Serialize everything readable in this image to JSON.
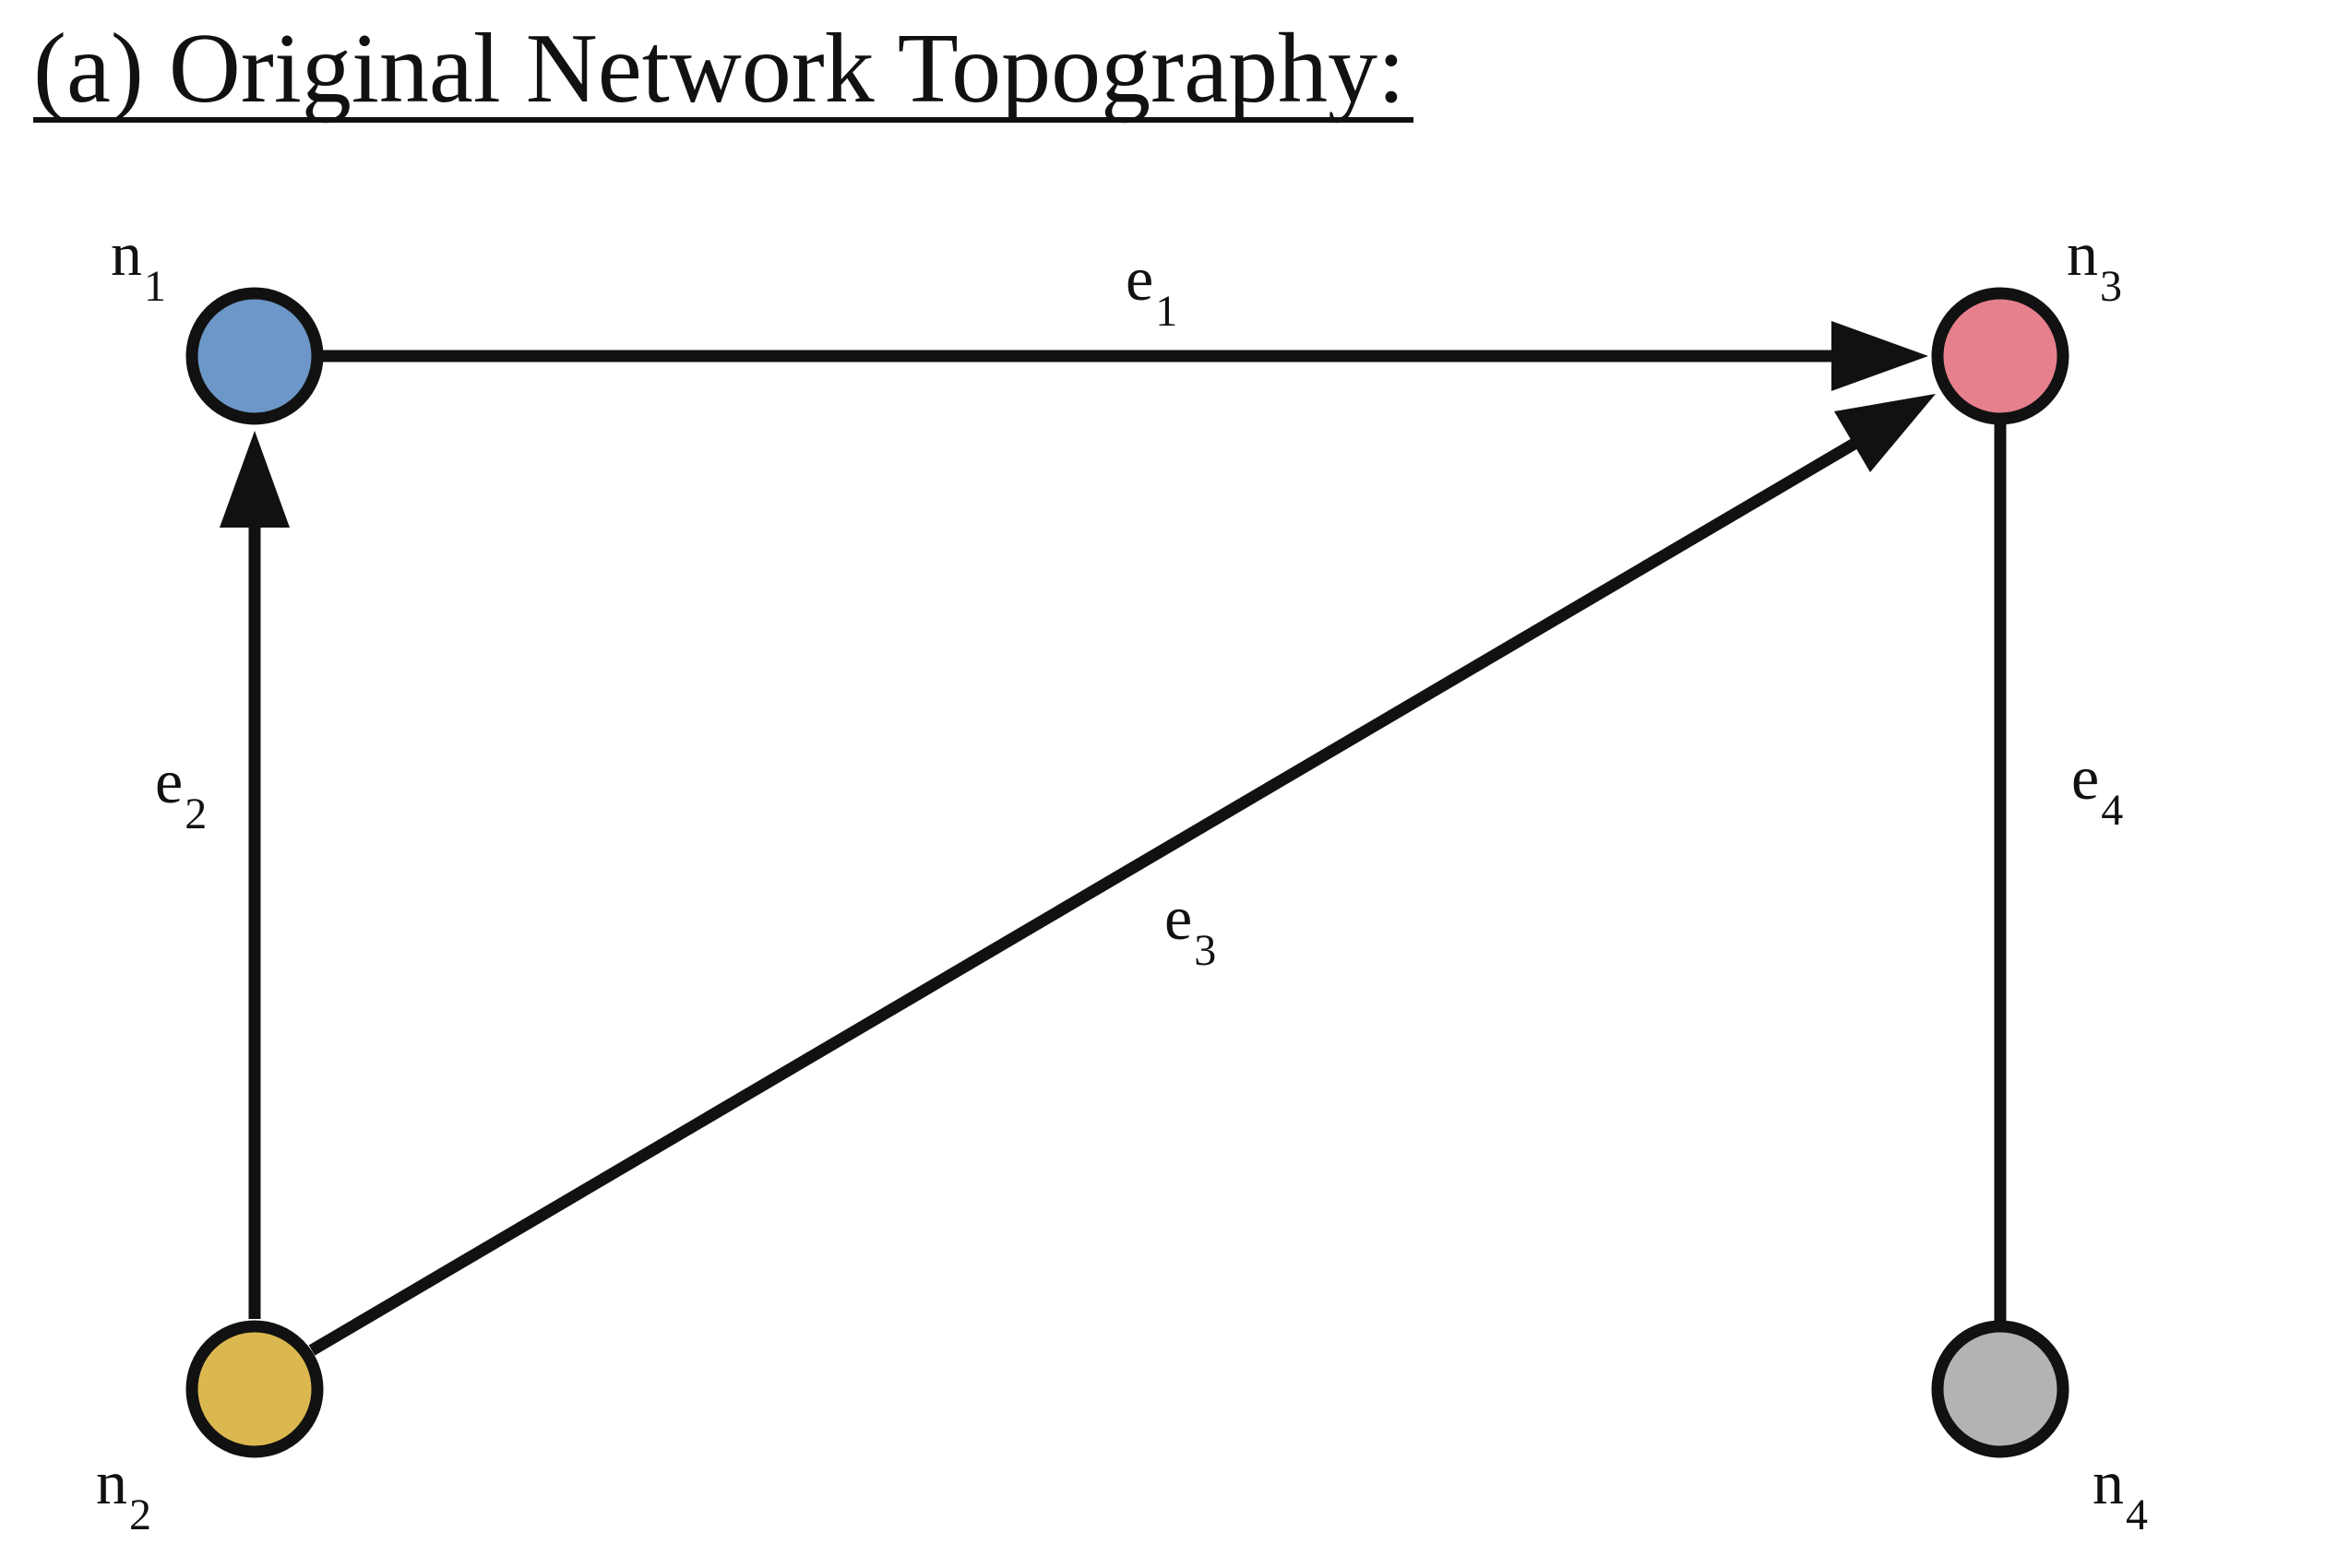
{
  "title": "(a) Original Network Topography:",
  "nodes": [
    {
      "id": "n1",
      "letter": "n",
      "sub": "1",
      "color": "#6c97c8"
    },
    {
      "id": "n2",
      "letter": "n",
      "sub": "2",
      "color": "#dbb84f"
    },
    {
      "id": "n3",
      "letter": "n",
      "sub": "3",
      "color": "#e6808c"
    },
    {
      "id": "n4",
      "letter": "n",
      "sub": "4",
      "color": "#b3b3b3"
    }
  ],
  "edges": [
    {
      "id": "e1",
      "letter": "e",
      "sub": "1",
      "from": "n1",
      "to": "n3",
      "directed": true
    },
    {
      "id": "e2",
      "letter": "e",
      "sub": "2",
      "from": "n2",
      "to": "n1",
      "directed": true
    },
    {
      "id": "e3",
      "letter": "e",
      "sub": "3",
      "from": "n2",
      "to": "n3",
      "directed": true
    },
    {
      "id": "e4",
      "letter": "e",
      "sub": "4",
      "from": "n3",
      "to": "n4",
      "directed": false
    }
  ]
}
